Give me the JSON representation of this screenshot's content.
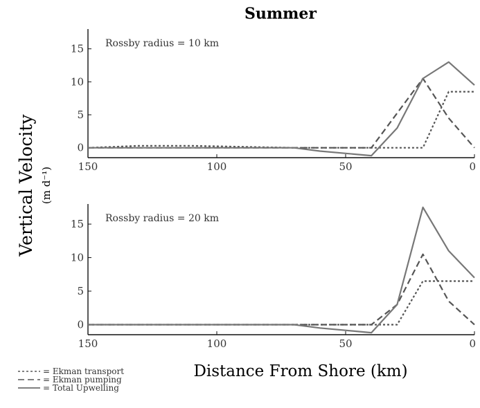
{
  "title": "Summer",
  "ylabel": "Vertical Velocity",
  "yunits": "(m d⁻¹)",
  "xlabel": "Distance From Shore (km)",
  "legend": [
    {
      "label": "= Ekman transport",
      "style": "dotted"
    },
    {
      "label": "= Ekman pumping",
      "style": "dashed"
    },
    {
      "label": "= Total Upwelling",
      "style": "solid"
    }
  ],
  "colors": {
    "ekman_transport": "#555555",
    "ekman_pumping": "#555555",
    "total": "#777777",
    "axis": "#111111"
  },
  "chart_data": [
    {
      "type": "line",
      "annotation": "Rossby radius = 10 km",
      "xlim": [
        150,
        0
      ],
      "ylim": [
        -1.5,
        18
      ],
      "xticks": [
        150,
        100,
        50,
        0
      ],
      "yticks": [
        0,
        5,
        10,
        15
      ],
      "series": [
        {
          "key": "ekman_transport",
          "style": "dotted",
          "x": [
            150,
            130,
            110,
            70,
            20,
            10,
            0
          ],
          "y": [
            0,
            0.3,
            0.3,
            0,
            0,
            8.5,
            8.5
          ]
        },
        {
          "key": "ekman_pumping",
          "style": "dashed",
          "x": [
            150,
            40,
            20,
            10,
            0
          ],
          "y": [
            0,
            0,
            10.5,
            4.5,
            0
          ]
        },
        {
          "key": "total",
          "style": "solid",
          "x": [
            150,
            70,
            60,
            40,
            30,
            20,
            10,
            0
          ],
          "y": [
            0,
            0,
            -0.5,
            -1.2,
            3,
            10.5,
            13,
            9.5
          ]
        }
      ]
    },
    {
      "type": "line",
      "annotation": "Rossby radius = 20 km",
      "xlim": [
        150,
        0
      ],
      "ylim": [
        -1.5,
        18
      ],
      "xticks": [
        150,
        100,
        50,
        0
      ],
      "yticks": [
        0,
        5,
        10,
        15
      ],
      "series": [
        {
          "key": "ekman_transport",
          "style": "dotted",
          "x": [
            150,
            30,
            20,
            10,
            0
          ],
          "y": [
            0,
            0,
            6.5,
            6.5,
            6.5
          ]
        },
        {
          "key": "ekman_pumping",
          "style": "dashed",
          "x": [
            150,
            40,
            30,
            20,
            10,
            0
          ],
          "y": [
            0,
            0,
            3,
            10.5,
            3.5,
            0
          ]
        },
        {
          "key": "total",
          "style": "solid",
          "x": [
            150,
            70,
            60,
            40,
            30,
            20,
            10,
            0
          ],
          "y": [
            0,
            0,
            -0.5,
            -1.2,
            3,
            17.5,
            11,
            7
          ]
        }
      ]
    }
  ]
}
